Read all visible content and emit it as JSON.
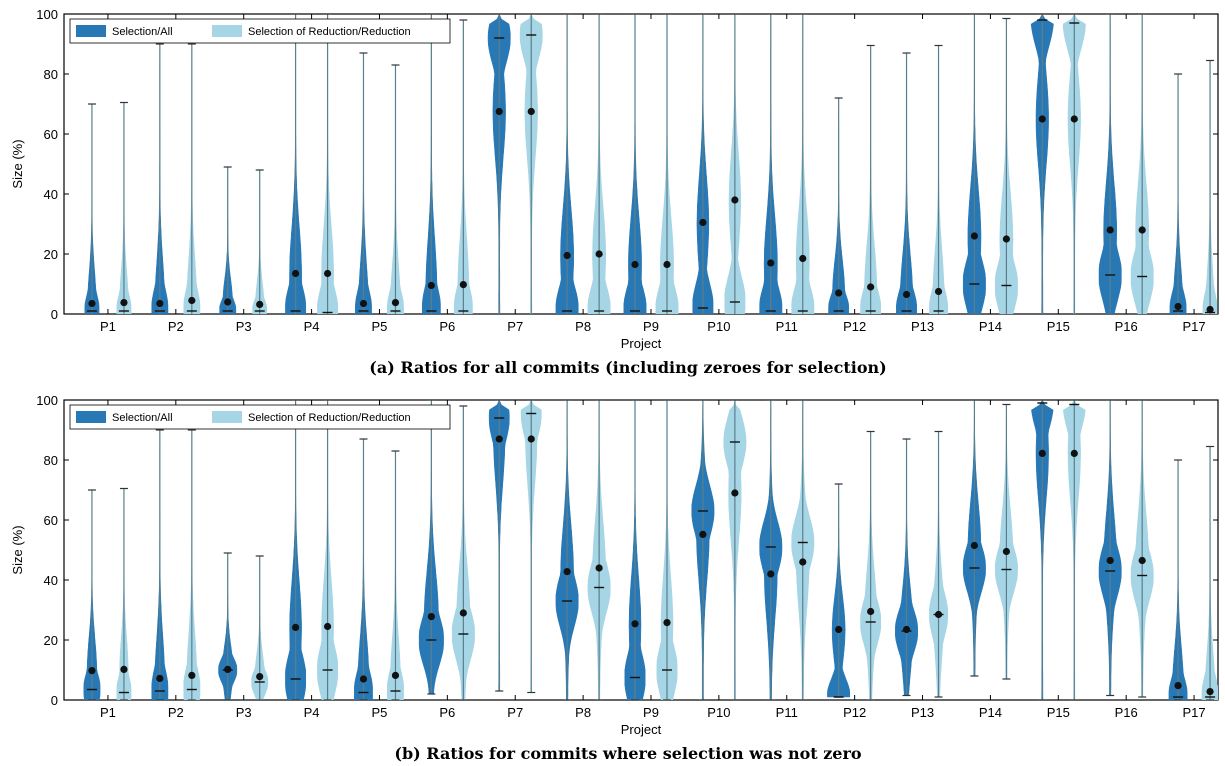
{
  "colors": {
    "selection": "#2878b5",
    "reduction": "#a6d5e6",
    "stem": "#5a7f8c",
    "median_dot": "#111111",
    "mean_bar": "#111111"
  },
  "legend": {
    "selection": "Selection/All",
    "reduction": "Selection of Reduction/Reduction",
    "placement": "upper-left"
  },
  "chart_data": [
    {
      "type": "violin",
      "title": "",
      "caption": "(a) Ratios for all commits (including zeroes for selection)",
      "xlabel": "Project",
      "ylabel": "Size (%)",
      "ylim": [
        0,
        100
      ],
      "yticks": [
        "0",
        "20",
        "40",
        "60",
        "80",
        "100"
      ],
      "categories": [
        "P1",
        "P2",
        "P3",
        "P4",
        "P5",
        "P6",
        "P7",
        "P8",
        "P9",
        "P10",
        "P11",
        "P12",
        "P13",
        "P14",
        "P15",
        "P16",
        "P17"
      ],
      "series": [
        {
          "name": "Selection/All",
          "max": [
            70,
            90,
            49,
            100,
            87,
            100,
            100,
            100,
            100,
            100,
            100,
            72,
            87,
            100,
            100,
            100,
            80
          ],
          "median": [
            1,
            1,
            1,
            1,
            1,
            1,
            92,
            1,
            1,
            2,
            1,
            1,
            1,
            10,
            98,
            13,
            1
          ],
          "mean": [
            3.5,
            3.5,
            4,
            13.5,
            3.5,
            9.5,
            67.5,
            19.5,
            16.5,
            30.5,
            17,
            7,
            6.5,
            26,
            65,
            28,
            2.5
          ],
          "width": [
            0.35,
            0.4,
            0.4,
            0.5,
            0.4,
            0.45,
            0.55,
            0.55,
            0.55,
            0.5,
            0.55,
            0.5,
            0.5,
            0.55,
            0.55,
            0.55,
            0.4
          ]
        },
        {
          "name": "Selection of Reduction/Reduction",
          "max": [
            70.5,
            90,
            48,
            100,
            83,
            98,
            100,
            100,
            100,
            100,
            100,
            89.5,
            89.5,
            98.5,
            100,
            100,
            84.5
          ],
          "median": [
            1,
            1,
            1,
            0.5,
            1,
            1,
            93,
            1,
            1,
            4,
            1,
            1,
            1,
            9.5,
            97,
            12.5,
            0.5
          ],
          "mean": [
            3.8,
            4.5,
            3.2,
            13.5,
            3.8,
            9.8,
            67.5,
            20,
            16.5,
            38,
            18.5,
            9,
            7.5,
            25,
            65,
            28,
            1.5
          ],
          "width": [
            0.35,
            0.4,
            0.35,
            0.5,
            0.4,
            0.45,
            0.55,
            0.55,
            0.55,
            0.5,
            0.55,
            0.5,
            0.45,
            0.55,
            0.55,
            0.55,
            0.35
          ]
        }
      ]
    },
    {
      "type": "violin",
      "title": "",
      "caption": "(b) Ratios for commits where selection was not zero",
      "xlabel": "Project",
      "ylabel": "Size (%)",
      "ylim": [
        0,
        100
      ],
      "yticks": [
        "0",
        "20",
        "40",
        "60",
        "80",
        "100"
      ],
      "categories": [
        "P1",
        "P2",
        "P3",
        "P4",
        "P5",
        "P6",
        "P7",
        "P8",
        "P9",
        "P10",
        "P11",
        "P12",
        "P13",
        "P14",
        "P15",
        "P16",
        "P17"
      ],
      "series": [
        {
          "name": "Selection/All",
          "min": [
            0,
            0,
            0,
            0,
            0,
            2,
            3,
            0,
            0,
            0,
            0,
            1,
            1.5,
            8,
            0,
            1.5,
            0
          ],
          "max": [
            70,
            90,
            49,
            100,
            87,
            100,
            100,
            100,
            100,
            100,
            100,
            72,
            87,
            100,
            100,
            100,
            80
          ],
          "median": [
            3.5,
            3,
            10,
            7,
            2.5,
            20,
            94,
            33,
            7.5,
            63,
            51,
            1,
            23,
            44,
            99,
            43,
            1
          ],
          "mean": [
            9.8,
            7.2,
            10.2,
            24.2,
            7,
            27.8,
            87,
            42.8,
            25.4,
            55.2,
            42,
            23.5,
            23.5,
            51.5,
            82.2,
            46.5,
            4.8
          ],
          "width": [
            0.4,
            0.4,
            0.45,
            0.5,
            0.45,
            0.6,
            0.5,
            0.55,
            0.5,
            0.55,
            0.55,
            0.55,
            0.55,
            0.55,
            0.55,
            0.55,
            0.45
          ]
        },
        {
          "name": "Selection of Reduction/Reduction",
          "min": [
            0,
            0,
            0,
            0,
            0,
            0,
            2.5,
            0,
            0,
            0,
            0,
            0,
            1,
            7,
            0,
            1,
            0
          ],
          "max": [
            70.5,
            90,
            48,
            100,
            83,
            98,
            100,
            100,
            100,
            100,
            100,
            89.5,
            89.5,
            98.5,
            100,
            100,
            84.5
          ],
          "median": [
            2.5,
            3.5,
            6,
            10,
            3,
            22,
            95.5,
            37.5,
            10,
            86,
            52.5,
            26,
            28.5,
            43.5,
            98.5,
            41.5,
            1
          ],
          "mean": [
            10.2,
            8.2,
            7.8,
            24.5,
            8.2,
            29,
            87,
            44,
            25.8,
            69,
            46,
            29.5,
            28.5,
            49.5,
            82.2,
            46.5,
            2.8
          ],
          "width": [
            0.35,
            0.4,
            0.4,
            0.5,
            0.4,
            0.55,
            0.5,
            0.55,
            0.5,
            0.55,
            0.55,
            0.5,
            0.45,
            0.55,
            0.55,
            0.55,
            0.4
          ]
        }
      ]
    }
  ]
}
